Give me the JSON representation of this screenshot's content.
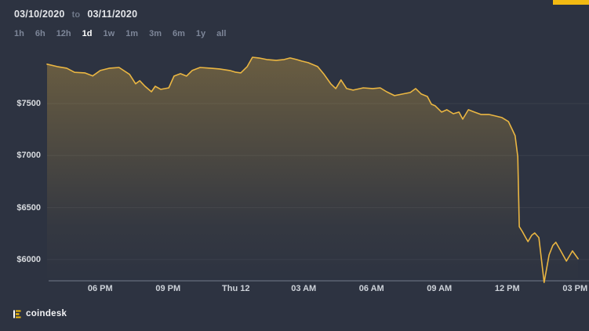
{
  "app": {
    "background": "#2d3341",
    "accent_yellow": "#f3ba12"
  },
  "header": {
    "date_from": "03/10/2020",
    "to_label": "to",
    "date_to": "03/11/2020",
    "ranges": [
      "1h",
      "6h",
      "12h",
      "1d",
      "1w",
      "1m",
      "3m",
      "6m",
      "1y",
      "all"
    ],
    "selected_range": "1d"
  },
  "chart_data": {
    "type": "line",
    "title": "",
    "ylabel": "",
    "xlabel": "",
    "line_color": "#eab642",
    "fill_color_top": "rgba(234,182,66,0.32)",
    "fill_color_bottom": "rgba(234,182,66,0)",
    "grid_color": "rgba(255,255,255,0.06)",
    "axis_color": "rgba(175,183,198,0.55)",
    "legend": "none",
    "grid": "on",
    "ylim": [
      5796,
      8005
    ],
    "x_total_minutes": 1438,
    "y_ticks": [
      {
        "price": 7500,
        "label": "$7500"
      },
      {
        "price": 7000,
        "label": "$7000"
      },
      {
        "price": 6500,
        "label": "$6500"
      },
      {
        "price": 6000,
        "label": "$6000"
      }
    ],
    "x_ticks": [
      {
        "min": 141,
        "label": "06 PM"
      },
      {
        "min": 321,
        "label": "09 PM"
      },
      {
        "min": 501,
        "label": "Thu 12"
      },
      {
        "min": 681,
        "label": "03 AM"
      },
      {
        "min": 861,
        "label": "06 AM"
      },
      {
        "min": 1041,
        "label": "09 AM"
      },
      {
        "min": 1221,
        "label": "12 PM"
      },
      {
        "min": 1401,
        "label": "03 PM"
      }
    ],
    "points": [
      [
        0,
        7878
      ],
      [
        27,
        7855
      ],
      [
        52,
        7840
      ],
      [
        73,
        7800
      ],
      [
        100,
        7795
      ],
      [
        121,
        7765
      ],
      [
        141,
        7817
      ],
      [
        166,
        7840
      ],
      [
        191,
        7847
      ],
      [
        219,
        7780
      ],
      [
        235,
        7690
      ],
      [
        246,
        7719
      ],
      [
        260,
        7666
      ],
      [
        277,
        7613
      ],
      [
        287,
        7666
      ],
      [
        302,
        7636
      ],
      [
        323,
        7651
      ],
      [
        337,
        7764
      ],
      [
        354,
        7787
      ],
      [
        370,
        7764
      ],
      [
        385,
        7817
      ],
      [
        406,
        7847
      ],
      [
        433,
        7840
      ],
      [
        458,
        7832
      ],
      [
        485,
        7817
      ],
      [
        499,
        7802
      ],
      [
        514,
        7795
      ],
      [
        531,
        7855
      ],
      [
        545,
        7945
      ],
      [
        562,
        7938
      ],
      [
        583,
        7923
      ],
      [
        608,
        7915
      ],
      [
        629,
        7923
      ],
      [
        645,
        7938
      ],
      [
        662,
        7923
      ],
      [
        676,
        7908
      ],
      [
        693,
        7893
      ],
      [
        718,
        7855
      ],
      [
        735,
        7780
      ],
      [
        753,
        7689
      ],
      [
        766,
        7644
      ],
      [
        780,
        7727
      ],
      [
        795,
        7644
      ],
      [
        812,
        7629
      ],
      [
        839,
        7651
      ],
      [
        864,
        7644
      ],
      [
        884,
        7651
      ],
      [
        901,
        7613
      ],
      [
        922,
        7576
      ],
      [
        943,
        7591
      ],
      [
        964,
        7606
      ],
      [
        978,
        7644
      ],
      [
        993,
        7591
      ],
      [
        1009,
        7568
      ],
      [
        1020,
        7493
      ],
      [
        1030,
        7478
      ],
      [
        1047,
        7418
      ],
      [
        1061,
        7440
      ],
      [
        1078,
        7402
      ],
      [
        1093,
        7418
      ],
      [
        1103,
        7350
      ],
      [
        1118,
        7440
      ],
      [
        1134,
        7418
      ],
      [
        1151,
        7395
      ],
      [
        1172,
        7395
      ],
      [
        1190,
        7380
      ],
      [
        1207,
        7365
      ],
      [
        1224,
        7327
      ],
      [
        1234,
        7252
      ],
      [
        1242,
        7191
      ],
      [
        1249,
        6988
      ],
      [
        1253,
        6317
      ],
      [
        1261,
        6271
      ],
      [
        1270,
        6211
      ],
      [
        1276,
        6173
      ],
      [
        1286,
        6234
      ],
      [
        1294,
        6256
      ],
      [
        1305,
        6211
      ],
      [
        1319,
        5780
      ],
      [
        1332,
        6045
      ],
      [
        1342,
        6136
      ],
      [
        1350,
        6166
      ],
      [
        1363,
        6083
      ],
      [
        1378,
        5985
      ],
      [
        1394,
        6083
      ],
      [
        1409,
        6008
      ]
    ]
  },
  "footer": {
    "brand": "coindesk",
    "logo_icon": "coindesk-logo"
  }
}
